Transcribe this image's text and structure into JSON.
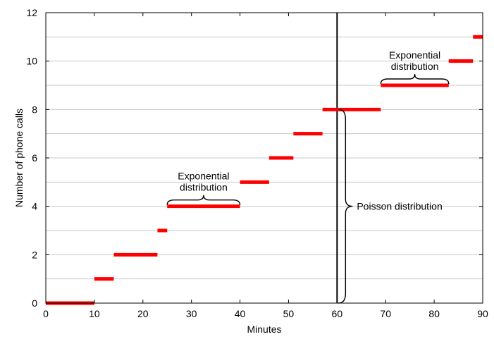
{
  "chart_data": {
    "type": "line",
    "title": "",
    "xlabel": "Minutes",
    "ylabel": "Number of phone calls",
    "xlim": [
      0,
      90
    ],
    "ylim": [
      0,
      12
    ],
    "xticks": [
      0,
      10,
      20,
      30,
      40,
      50,
      60,
      70,
      80,
      90
    ],
    "yticks": [
      0,
      2,
      4,
      6,
      8,
      10,
      12
    ],
    "grid": "horizontal",
    "series": [
      {
        "style": "step",
        "color": "#ff0000",
        "segments": [
          {
            "x_start": 0,
            "x_end": 10,
            "y": 0
          },
          {
            "x_start": 10,
            "x_end": 14,
            "y": 1
          },
          {
            "x_start": 14,
            "x_end": 23,
            "y": 2
          },
          {
            "x_start": 23,
            "x_end": 25,
            "y": 3
          },
          {
            "x_start": 25,
            "x_end": 40,
            "y": 4
          },
          {
            "x_start": 40,
            "x_end": 46,
            "y": 5
          },
          {
            "x_start": 46,
            "x_end": 51,
            "y": 6
          },
          {
            "x_start": 51,
            "x_end": 57,
            "y": 7
          },
          {
            "x_start": 57,
            "x_end": 69,
            "y": 8
          },
          {
            "x_start": 69,
            "x_end": 83,
            "y": 9
          },
          {
            "x_start": 83,
            "x_end": 88,
            "y": 10
          },
          {
            "x_start": 88,
            "x_end": 90,
            "y": 11
          }
        ]
      }
    ],
    "vertical_line": {
      "x": 60,
      "color": "#000000"
    },
    "annotations": [
      {
        "text_lines": [
          "Exponential",
          "distribution"
        ],
        "brace": "horizontal",
        "x_start": 25,
        "x_end": 40,
        "y": 4
      },
      {
        "text_lines": [
          "Exponential",
          "distribution"
        ],
        "brace": "horizontal",
        "x_start": 69,
        "x_end": 83,
        "y": 9
      },
      {
        "text_lines": [
          "Poisson distribution"
        ],
        "brace": "vertical",
        "x": 60,
        "y_start": 0,
        "y_end": 8
      }
    ]
  }
}
